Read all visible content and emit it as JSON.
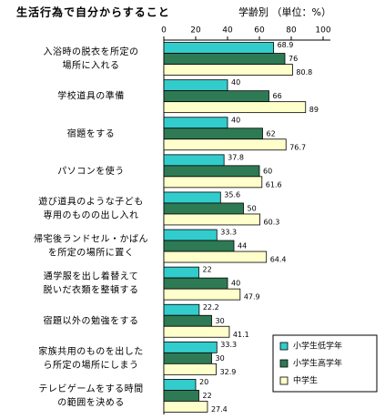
{
  "chart_data": {
    "type": "hbar",
    "title": "生活行為で自分からすること",
    "subtitle": "学齢別 （単位：%）",
    "categories": [
      [
        "入浴時の脱衣を所定の",
        "場所に入れる"
      ],
      [
        "学校道具の準備"
      ],
      [
        "宿題をする"
      ],
      [
        "パソコンを使う"
      ],
      [
        "遊び道具のような子ども",
        "専用のものの出し入れ"
      ],
      [
        "帰宅後ランドセル・かばん",
        "を所定の場所に置く"
      ],
      [
        "通学服を出し着替えて",
        "脱いだ衣類を整頓する"
      ],
      [
        "宿題以外の勉強をする"
      ],
      [
        "家族共用のものを出した",
        "ら所定の場所にしまう"
      ],
      [
        "テレビゲームをする時間",
        "の範囲を決める"
      ]
    ],
    "series": [
      {
        "name": "小学生低学年",
        "color": "#33cccc",
        "values": [
          68.9,
          40,
          40,
          37.8,
          35.6,
          33.3,
          22,
          22.2,
          33.3,
          20
        ]
      },
      {
        "name": "小学生高学年",
        "color": "#2e7a55",
        "values": [
          76,
          66,
          62,
          60,
          50,
          44,
          40,
          30,
          30,
          22
        ]
      },
      {
        "name": "中学生",
        "color": "#ffffcc",
        "values": [
          80.8,
          89,
          76.7,
          61.6,
          60.3,
          64.4,
          47.9,
          41.1,
          32.9,
          27.4
        ]
      }
    ],
    "xlim": [
      0,
      100
    ],
    "xticks": [
      0,
      20,
      40,
      60,
      80,
      100
    ],
    "legend": "lower right"
  }
}
